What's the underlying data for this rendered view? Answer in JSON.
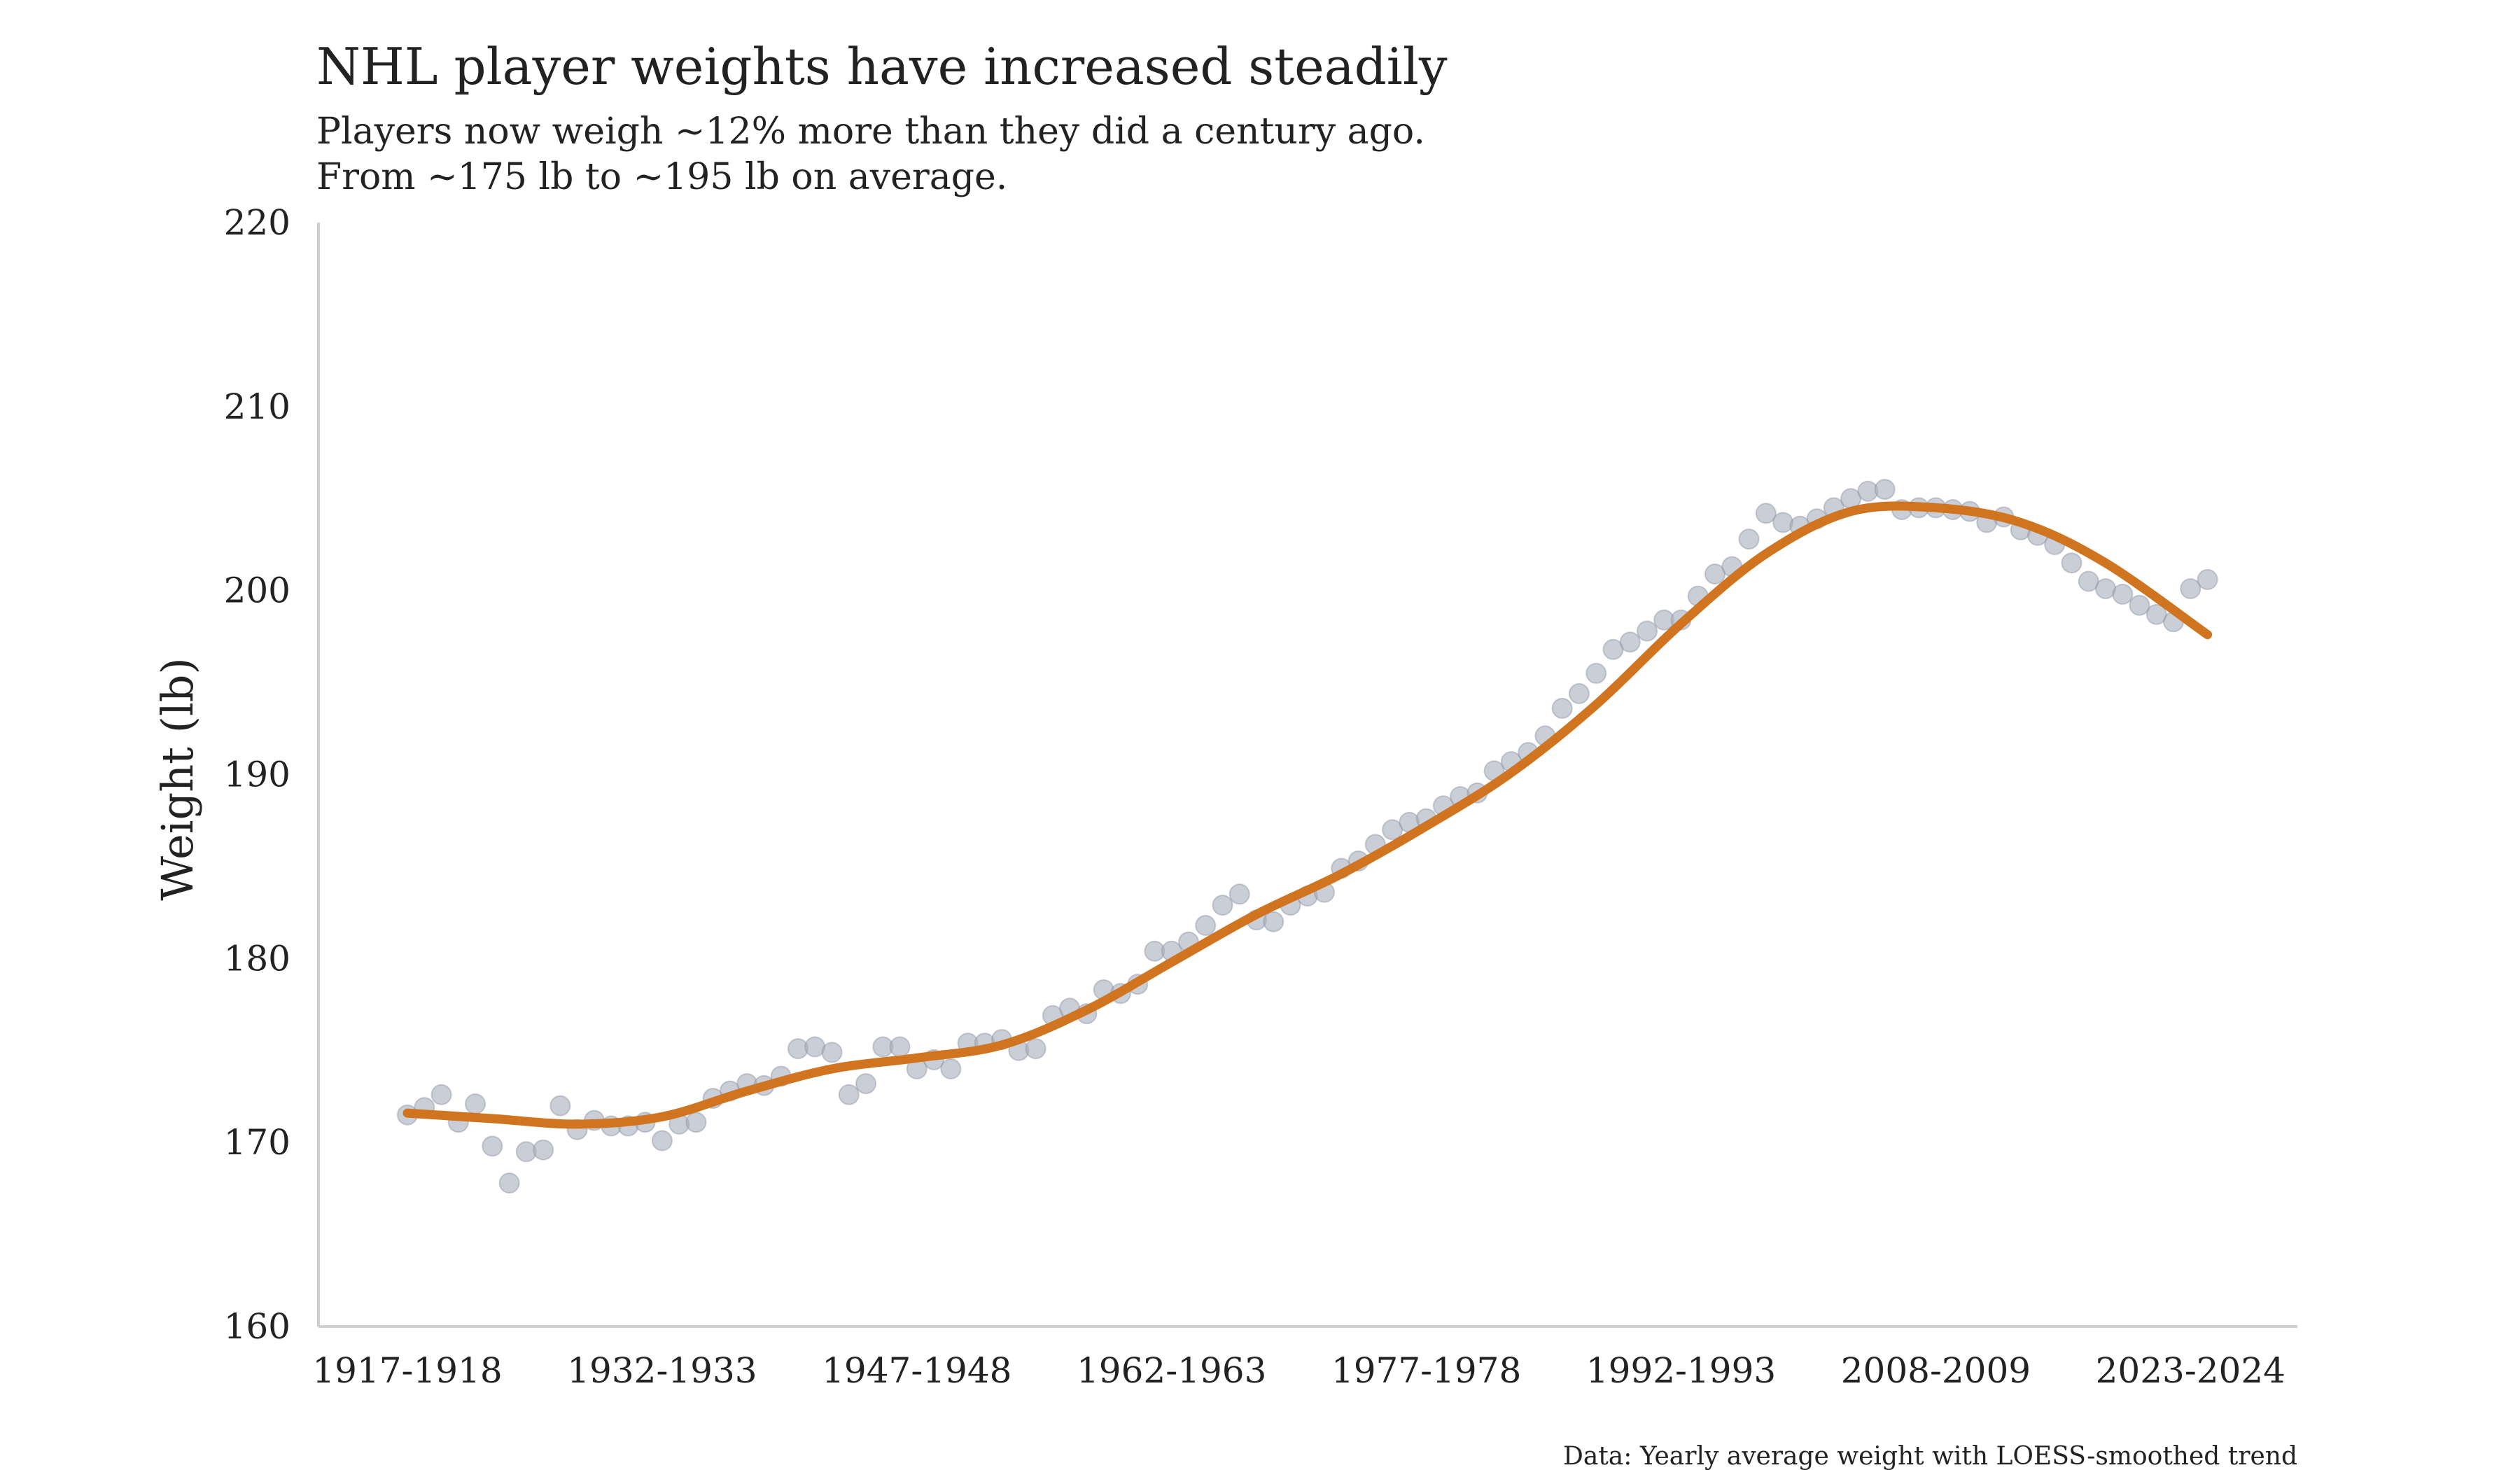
{
  "chart_data": {
    "type": "scatter",
    "title": "NHL player weights have increased steadily",
    "subtitle_lines": [
      "Players now weigh ~12% more than they did a century ago.",
      "From ~175 lb to ~195 lb on average."
    ],
    "xlabel": "",
    "ylabel": "Weight (lb)",
    "caption": "Data: Yearly average weight with LOESS-smoothed trend",
    "ylim": [
      160,
      220
    ],
    "yticks": [
      160,
      170,
      180,
      190,
      200,
      210,
      220
    ],
    "x_tick_labels": [
      "1917-1918",
      "1932-1933",
      "1947-1948",
      "1962-1963",
      "1977-1978",
      "1992-1993",
      "2008-2009",
      "2023-2024"
    ],
    "x_tick_season_index": [
      0,
      15,
      30,
      45,
      60,
      75,
      90,
      105
    ],
    "series": [
      {
        "name": "Yearly average weight",
        "season_index": [
          0,
          1,
          2,
          3,
          4,
          5,
          6,
          7,
          8,
          9,
          10,
          11,
          12,
          13,
          14,
          15,
          16,
          17,
          18,
          19,
          20,
          21,
          22,
          23,
          24,
          25,
          26,
          27,
          28,
          29,
          30,
          31,
          32,
          33,
          34,
          35,
          36,
          37,
          38,
          39,
          40,
          41,
          42,
          43,
          44,
          45,
          46,
          47,
          48,
          49,
          50,
          51,
          52,
          53,
          54,
          55,
          56,
          57,
          58,
          59,
          60,
          61,
          62,
          63,
          64,
          65,
          66,
          67,
          68,
          69,
          70,
          71,
          72,
          73,
          74,
          75,
          76,
          77,
          78,
          79,
          80,
          81,
          82,
          83,
          84,
          85,
          86,
          87,
          88,
          89,
          90,
          91,
          92,
          93,
          94,
          95,
          96,
          97,
          98,
          99,
          100,
          101,
          102,
          103,
          104,
          105,
          106
        ],
        "values": [
          171.5,
          171.9,
          172.6,
          171.1,
          172.1,
          169.8,
          167.8,
          169.5,
          169.6,
          172.0,
          170.7,
          171.2,
          170.9,
          170.9,
          171.1,
          170.1,
          171.0,
          171.1,
          172.4,
          172.8,
          173.2,
          173.1,
          173.6,
          175.1,
          175.2,
          174.9,
          172.6,
          173.2,
          175.2,
          175.2,
          174.0,
          174.5,
          174.0,
          175.4,
          175.4,
          175.6,
          175.0,
          175.1,
          176.9,
          177.3,
          177.0,
          178.3,
          178.1,
          178.6,
          180.4,
          180.4,
          180.9,
          181.8,
          182.9,
          183.5,
          182.1,
          182.0,
          182.9,
          183.4,
          183.6,
          184.9,
          185.3,
          186.2,
          187.0,
          187.4,
          187.6,
          188.3,
          188.8,
          189.0,
          190.2,
          190.7,
          191.2,
          192.1,
          193.6,
          194.4,
          195.5,
          196.8,
          197.2,
          197.8,
          198.4,
          198.4,
          199.7,
          200.9,
          201.3,
          202.8,
          204.2,
          203.7,
          203.5,
          203.9,
          204.5,
          205.0,
          205.4,
          205.5,
          204.4,
          204.5,
          204.5,
          204.4,
          204.3,
          203.7,
          204.0,
          203.3,
          203.0,
          202.5,
          201.5,
          200.5,
          200.1,
          199.8,
          199.2,
          198.7,
          198.3,
          200.1,
          200.6
        ]
      },
      {
        "name": "LOESS-smoothed trend",
        "season_index": [
          0,
          5,
          10,
          15,
          20,
          25,
          30,
          35,
          40,
          45,
          50,
          55,
          60,
          65,
          70,
          75,
          80,
          85,
          90,
          95,
          100,
          106
        ],
        "values": [
          171.6,
          171.3,
          171.0,
          171.4,
          172.8,
          174.0,
          174.6,
          175.3,
          177.2,
          179.8,
          182.4,
          184.6,
          187.2,
          190.1,
          193.8,
          198.2,
          202.0,
          204.3,
          204.5,
          203.7,
          201.5,
          197.6
        ]
      }
    ]
  }
}
